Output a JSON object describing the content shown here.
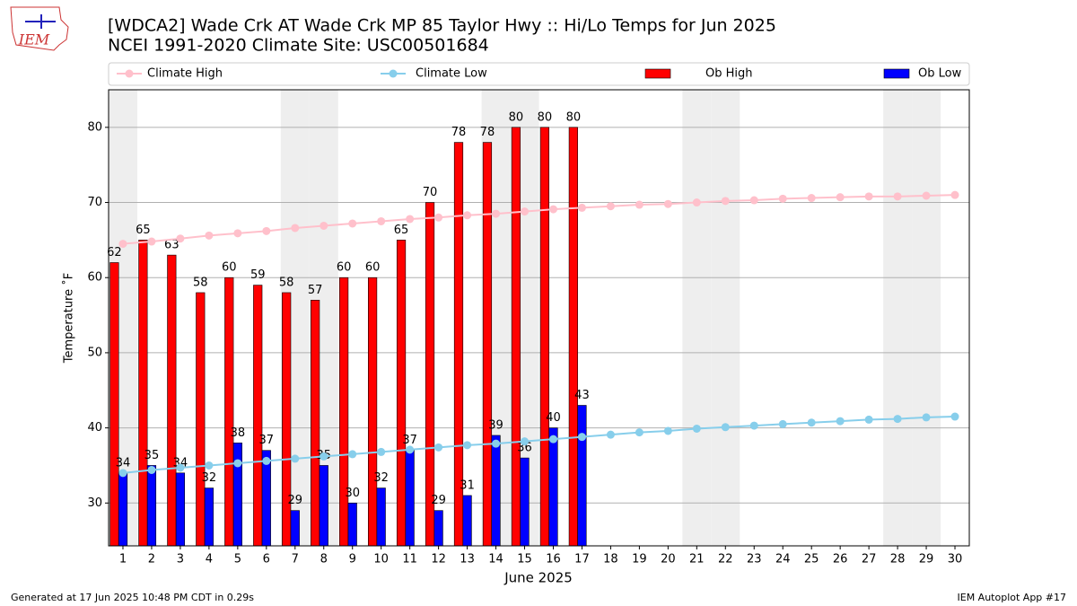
{
  "logo": "IEM",
  "footer_left": "Generated at 17 Jun 2025 10:48 PM CDT in 0.29s",
  "footer_right": "IEM Autoplot App #17",
  "chart_data": {
    "type": "bar",
    "title": "[WDCA2] Wade Crk  AT Wade Crk MP 85 Taylor Hwy :: Hi/Lo Temps for Jun 2025",
    "subtitle": "NCEI 1991-2020 Climate Site: USC00501684",
    "xlabel": "June 2025",
    "ylabel": "Temperature ˚F",
    "x": [
      1,
      2,
      3,
      4,
      5,
      6,
      7,
      8,
      9,
      10,
      11,
      12,
      13,
      14,
      15,
      16,
      17,
      18,
      19,
      20,
      21,
      22,
      23,
      24,
      25,
      26,
      27,
      28,
      29,
      30
    ],
    "xlim": [
      0.5,
      30.5
    ],
    "xticks": [
      1,
      2,
      3,
      4,
      5,
      6,
      7,
      8,
      9,
      10,
      11,
      12,
      13,
      14,
      15,
      16,
      17,
      18,
      19,
      20,
      21,
      22,
      23,
      24,
      25,
      26,
      27,
      28,
      29,
      30
    ],
    "ylim": [
      24.3,
      85
    ],
    "yticks": [
      30,
      40,
      50,
      60,
      70,
      80
    ],
    "grid": true,
    "shaded_days": [
      1,
      7,
      8,
      14,
      15,
      21,
      22,
      28,
      29
    ],
    "shade_color": "#eeeeee",
    "series": [
      {
        "name": "Climate High",
        "type": "line",
        "color": "#ffc0cb",
        "values": [
          64.5,
          64.8,
          65.2,
          65.6,
          65.9,
          66.2,
          66.6,
          66.9,
          67.2,
          67.5,
          67.8,
          68.0,
          68.3,
          68.5,
          68.8,
          69.1,
          69.3,
          69.5,
          69.7,
          69.8,
          70.0,
          70.2,
          70.3,
          70.5,
          70.6,
          70.7,
          70.8,
          70.8,
          70.9,
          71.0
        ]
      },
      {
        "name": "Climate Low",
        "type": "line",
        "color": "#87ceeb",
        "values": [
          34.0,
          34.4,
          34.7,
          35.0,
          35.3,
          35.6,
          35.9,
          36.2,
          36.5,
          36.8,
          37.1,
          37.4,
          37.7,
          37.9,
          38.2,
          38.5,
          38.8,
          39.1,
          39.4,
          39.6,
          39.9,
          40.1,
          40.3,
          40.5,
          40.7,
          40.9,
          41.1,
          41.2,
          41.4,
          41.5
        ]
      },
      {
        "name": "Ob High",
        "type": "bar",
        "color": "#ff0000",
        "values": [
          62,
          65,
          63,
          58,
          60,
          59,
          58,
          57,
          60,
          60,
          65,
          70,
          78,
          78,
          80,
          80,
          80,
          null,
          null,
          null,
          null,
          null,
          null,
          null,
          null,
          null,
          null,
          null,
          null,
          null
        ]
      },
      {
        "name": "Ob Low",
        "type": "bar",
        "color": "#0000ff",
        "values": [
          34,
          35,
          34,
          32,
          38,
          37,
          29,
          35,
          30,
          32,
          37,
          29,
          31,
          39,
          36,
          40,
          43,
          null,
          null,
          null,
          null,
          null,
          null,
          null,
          null,
          null,
          null,
          null,
          null,
          null
        ]
      }
    ]
  }
}
